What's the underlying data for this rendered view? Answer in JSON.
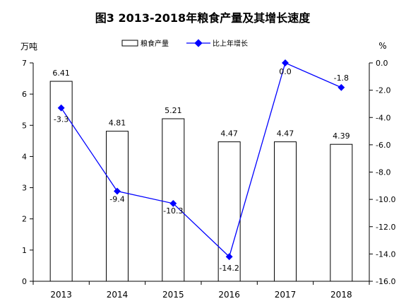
{
  "chart_data": {
    "type": "bar",
    "title": "图3  2013-2018年粮食产量及其增长速度",
    "categories": [
      "2013",
      "2014",
      "2015",
      "2016",
      "2017",
      "2018"
    ],
    "y_left": {
      "label": "万吨",
      "ylim": [
        0,
        7
      ],
      "ticks": [
        "0",
        "1",
        "2",
        "3",
        "4",
        "5",
        "6",
        "7"
      ]
    },
    "y_right": {
      "label": "%",
      "ylim": [
        -16.0,
        0.0
      ],
      "ticks": [
        "-16.0",
        "-14.0",
        "-12.0",
        "-10.0",
        "-8.0",
        "-6.0",
        "-4.0",
        "-2.0",
        "0.0"
      ]
    },
    "series": [
      {
        "name": "粮食产量",
        "type": "bar",
        "axis": "left",
        "values": [
          6.41,
          4.81,
          5.21,
          4.47,
          4.47,
          4.39
        ],
        "labels": [
          "6.41",
          "4.81",
          "5.21",
          "4.47",
          "4.47",
          "4.39"
        ]
      },
      {
        "name": "比上年增长",
        "type": "line",
        "axis": "right",
        "values": [
          -3.3,
          -9.4,
          -10.3,
          -14.2,
          0.0,
          -1.8
        ],
        "labels": [
          "-3.3",
          "-9.4",
          "-10.3",
          "-14.2",
          "0.0",
          "-1.8"
        ],
        "color": "#0000ff"
      }
    ],
    "legend_position": "top",
    "grid": false
  }
}
